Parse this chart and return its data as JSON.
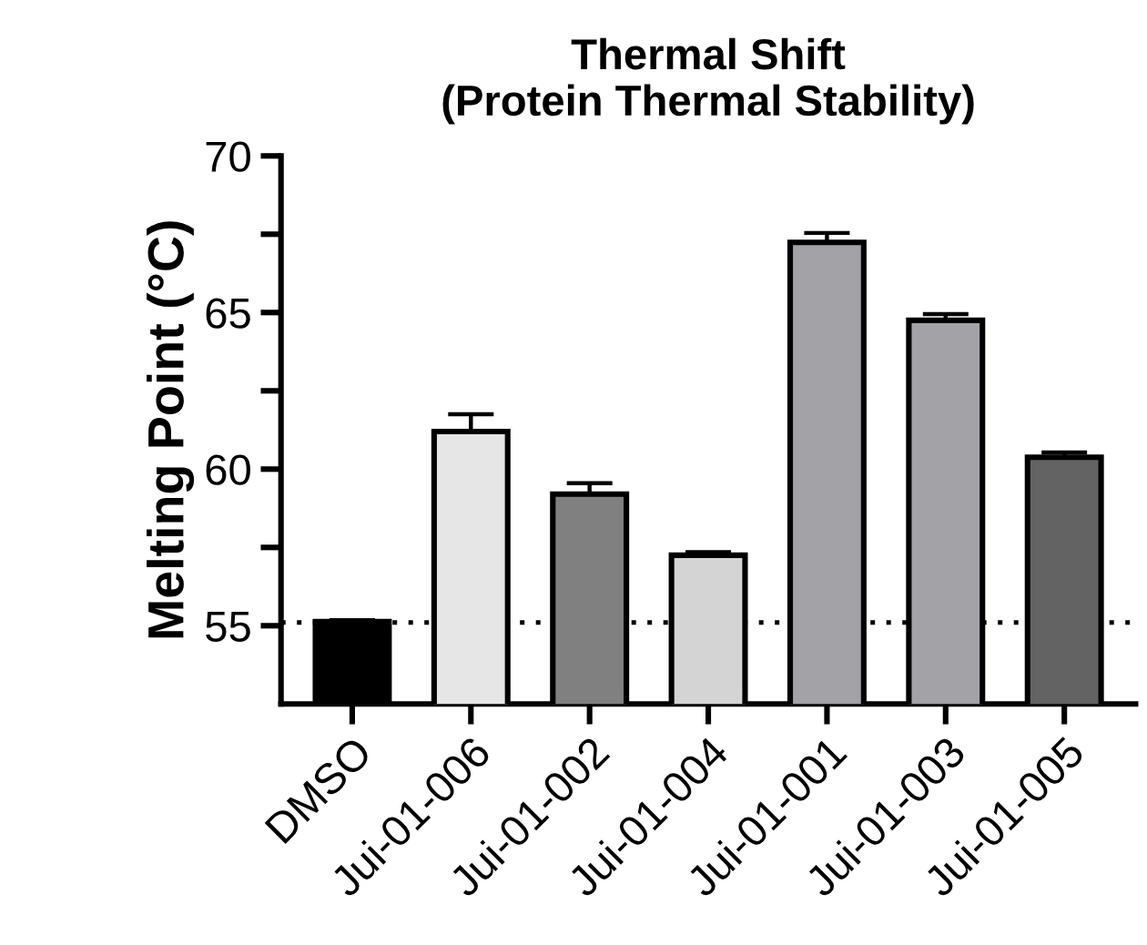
{
  "chart_data": {
    "type": "bar",
    "title": "Thermal Shift\n(Protein Thermal Stability)",
    "ylabel": "Melting Point (°C)",
    "categories": [
      "DMSO",
      "Jui-01-006",
      "Jui-01-002",
      "Jui-01-004",
      "Jui-01-001",
      "Jui-01-003",
      "Jui-01-005"
    ],
    "values": [
      55.13,
      61.2,
      59.2,
      57.25,
      67.24,
      64.75,
      60.38
    ],
    "errors": [
      0.05,
      0.55,
      0.35,
      0.1,
      0.3,
      0.2,
      0.15
    ],
    "colors": [
      "#000000",
      "#e6e6e6",
      "#808080",
      "#d4d4d4",
      "#a3a2a7",
      "#a3a2a7",
      "#636363"
    ],
    "ylim": [
      52.5,
      70
    ],
    "yticks": [
      55,
      {
        "value": 57.5,
        "label": null
      },
      60,
      {
        "value": 62.5,
        "label": null
      },
      65,
      {
        "value": 67.5,
        "label": null
      },
      70
    ],
    "ref_lines": [
      {
        "axis": "y",
        "value": 55.1,
        "line_style": "dotted",
        "color": "#000000"
      }
    ],
    "grid": false,
    "legend": false
  }
}
